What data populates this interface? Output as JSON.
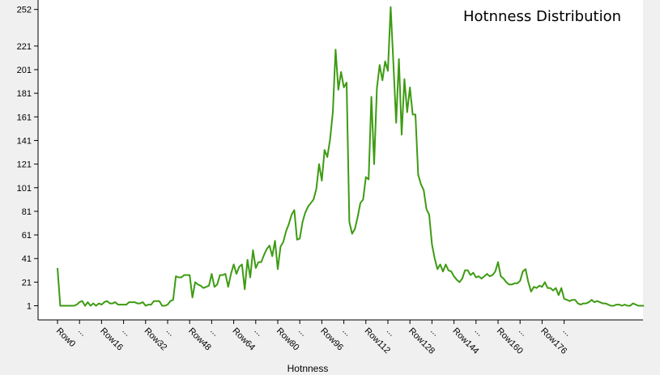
{
  "chart_data": {
    "type": "line",
    "title": "Hotnness Distribution",
    "xlabel": "Hotnness",
    "ylabel": "",
    "y_ticks": [
      1,
      21,
      41,
      61,
      81,
      101,
      121,
      141,
      161,
      181,
      201,
      221,
      252
    ],
    "ylim": [
      -11,
      260
    ],
    "x_tick_labels": [
      "Row0",
      "...",
      "Row16",
      "...",
      "Row32",
      "...",
      "Row48",
      "...",
      "Row64",
      "...",
      "Row80",
      "...",
      "Row96",
      "...",
      "Row112",
      "...",
      "Row128",
      "...",
      "Row144",
      "...",
      "Row160",
      "...",
      "Row176",
      "..."
    ],
    "x_tick_step": 8,
    "grid": false,
    "legend": "none",
    "colors": {
      "line": "#3d9b12",
      "background": "#f0f0f0",
      "plot_background": "#ffffff"
    },
    "series": [
      {
        "values": [
          33,
          1,
          1,
          1,
          1,
          1,
          1,
          2,
          4,
          5,
          1,
          4,
          1,
          3,
          1,
          3,
          2,
          4,
          5,
          3,
          3,
          4,
          2,
          2,
          2,
          2,
          4,
          4,
          4,
          3,
          3,
          4,
          1,
          2,
          2,
          5,
          5,
          5,
          1,
          1,
          2,
          5,
          6,
          26,
          25,
          25,
          27,
          27,
          27,
          8,
          21,
          19,
          18,
          16,
          17,
          18,
          28,
          17,
          19,
          27,
          27,
          28,
          17,
          28,
          36,
          28,
          34,
          36,
          15,
          40,
          25,
          48,
          33,
          38,
          38,
          44,
          49,
          52,
          43,
          56,
          32,
          51,
          55,
          64,
          70,
          78,
          82,
          57,
          58,
          72,
          80,
          85,
          88,
          91,
          100,
          121,
          107,
          133,
          127,
          142,
          165,
          218,
          184,
          199,
          186,
          190,
          72,
          62,
          66,
          76,
          88,
          91,
          110,
          108,
          178,
          121,
          185,
          205,
          192,
          208,
          200,
          254,
          206,
          156,
          210,
          146,
          193,
          165,
          186,
          163,
          163,
          112,
          104,
          99,
          83,
          78,
          53,
          41,
          32,
          36,
          30,
          36,
          31,
          30,
          26,
          23,
          21,
          24,
          31,
          31,
          27,
          29,
          25,
          26,
          24,
          26,
          28,
          26,
          27,
          30,
          38,
          26,
          24,
          21,
          19,
          19,
          20,
          20,
          22,
          30,
          32,
          21,
          13,
          17,
          16,
          18,
          17,
          21,
          16,
          16,
          14,
          16,
          10,
          16,
          7,
          6,
          5,
          6,
          6,
          3,
          2,
          3,
          3,
          4,
          6,
          4,
          5,
          4,
          3,
          3,
          2,
          1,
          1,
          2,
          2,
          1,
          2,
          1,
          1,
          3,
          2,
          1,
          1,
          1
        ]
      }
    ]
  }
}
